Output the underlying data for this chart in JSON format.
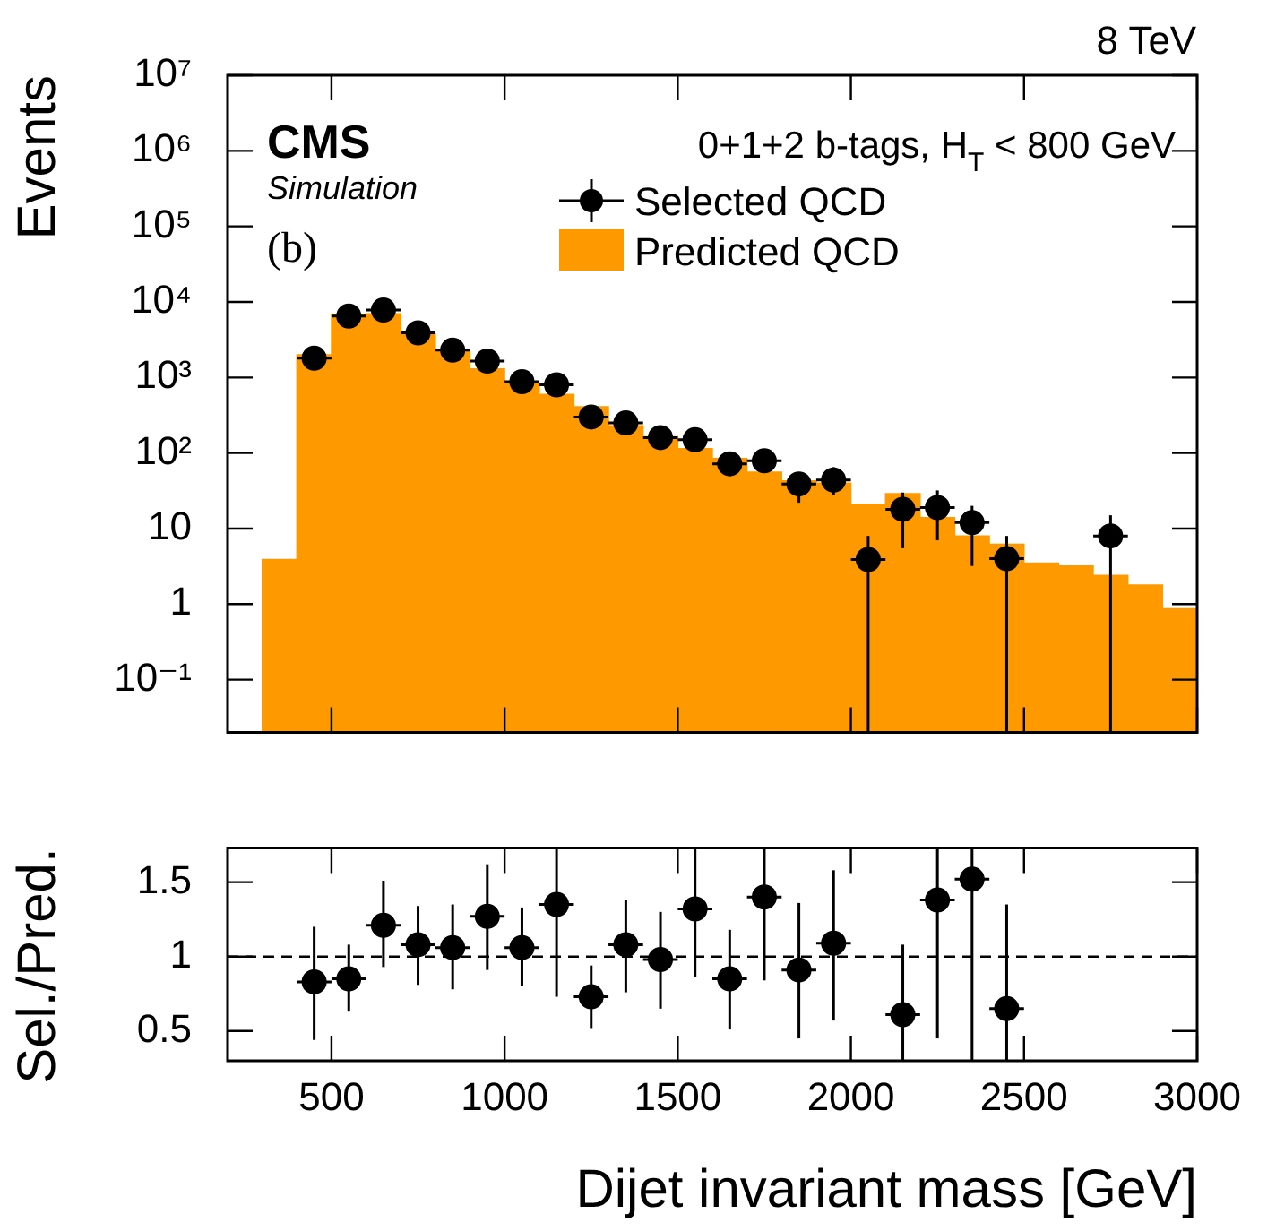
{
  "chart_data": [
    {
      "type": "histogram",
      "title": "8 TeV",
      "ylabel": "Events",
      "log": "y",
      "legend": "top right",
      "tick_labels": "y",
      "marker": "circle",
      "annotations": [
        "CMS",
        "Simulation",
        "(b)",
        "0+1+2 b-tags, H$_{T}$ < 800 GeV"
      ],
      "xlim": [
        200,
        3000
      ],
      "xticks": [
        {
          "value": 500,
          "label": null
        },
        {
          "value": 1000,
          "label": null
        },
        {
          "value": 1500,
          "label": null
        },
        {
          "value": 2000,
          "label": null
        },
        {
          "value": 2500,
          "label": null
        },
        {
          "value": 3000,
          "label": null
        }
      ],
      "ylim": [
        0.02,
        10000000
      ],
      "yticks": [
        {
          "value": 0.1,
          "label": "10⁻¹"
        },
        1,
        10,
        {
          "value": 100,
          "label": "10²"
        },
        {
          "value": 1000,
          "label": "10³"
        },
        {
          "value": 10000,
          "label": "10⁴"
        },
        {
          "value": 100000,
          "label": "10⁵"
        },
        {
          "value": 1000000,
          "label": "10⁶"
        },
        {
          "value": 10000000,
          "label": "10⁷"
        }
      ],
      "series": [
        {
          "name": "Predicted QCD",
          "color": "#ff9900",
          "bins": [
            300,
            400,
            500,
            600,
            700,
            800,
            900,
            1000,
            1100,
            1200,
            1300,
            1400,
            1500,
            1600,
            1700,
            1800,
            1900,
            2000,
            2100,
            2200,
            2300,
            2400,
            2500,
            2600,
            2700,
            2800,
            2900,
            3000
          ],
          "values": [
            3.9,
            2000,
            6800,
            7000,
            3800,
            2200,
            1300,
            830,
            600,
            410,
            230,
            165,
            115,
            85,
            56,
            43,
            40,
            21,
            29,
            14,
            8,
            6.2,
            3.5,
            3.2,
            2.4,
            1.8,
            0.87
          ]
        },
        {
          "type": "scatter",
          "name": "Selected QCD",
          "color": "#000000",
          "x": [
            450,
            550,
            650,
            750,
            850,
            950,
            1050,
            1150,
            1250,
            1350,
            1450,
            1550,
            1650,
            1750,
            1850,
            1950,
            2050,
            2150,
            2250,
            2350,
            2450,
            2750
          ],
          "values": [
            1800,
            6500,
            7800,
            3900,
            2300,
            1650,
            880,
            800,
            300,
            250,
            160,
            150,
            72,
            79,
            39,
            44,
            3.9,
            18,
            19,
            12,
            4,
            8
          ],
          "xerrors": [
            50,
            50,
            50,
            50,
            50,
            50,
            50,
            50,
            50,
            50,
            50,
            50,
            50,
            50,
            50,
            50,
            50,
            50,
            50,
            50,
            50,
            50
          ],
          "errors": [
            null,
            null,
            null,
            null,
            null,
            null,
            null,
            null,
            null,
            null,
            null,
            null,
            null,
            null,
            [
              22,
              55
            ],
            [
              28,
              65
            ],
            [
              0.02,
              8
            ],
            [
              5.5,
              30
            ],
            [
              7,
              32
            ],
            [
              3.2,
              20
            ],
            [
              0.02,
              8
            ],
            [
              0.02,
              15
            ]
          ]
        }
      ]
    },
    {
      "type": "scatter",
      "xlabel": "Dijet invariant mass [GeV]",
      "ylabel": "Sel./Pred.",
      "marker": "circle",
      "xlim": [
        200,
        3000
      ],
      "xticks": [
        500,
        1000,
        1500,
        2000,
        2500,
        3000
      ],
      "ylim": [
        0.3,
        1.73
      ],
      "yticks": [
        0.5,
        1,
        1.5
      ],
      "ref_lines": [
        {
          "axis": "y",
          "value": 1,
          "line_style": "dashed",
          "color": "#000000"
        }
      ],
      "series": [
        {
          "color": "#000000",
          "x": [
            450,
            550,
            650,
            750,
            850,
            950,
            1050,
            1150,
            1250,
            1350,
            1450,
            1550,
            1650,
            1750,
            1850,
            1950,
            2050,
            2150,
            2250,
            2350,
            2450
          ],
          "values": [
            0.83,
            0.85,
            1.21,
            1.08,
            1.06,
            1.27,
            1.06,
            1.35,
            0.73,
            1.08,
            0.98,
            1.32,
            0.85,
            1.4,
            0.91,
            1.09,
            null,
            0.61,
            1.38,
            1.52,
            0.65
          ],
          "xerrors": [
            50,
            50,
            50,
            50,
            50,
            50,
            50,
            50,
            50,
            50,
            50,
            50,
            50,
            50,
            50,
            50,
            null,
            50,
            50,
            50,
            50
          ],
          "errors": [
            [
              0.44,
              1.2
            ],
            [
              0.63,
              1.08
            ],
            [
              0.93,
              1.51
            ],
            [
              0.81,
              1.34
            ],
            [
              0.78,
              1.35
            ],
            [
              0.91,
              1.62
            ],
            [
              0.8,
              1.33
            ],
            [
              0.73,
              1.73
            ],
            [
              0.52,
              0.94
            ],
            [
              0.76,
              1.38
            ],
            [
              0.65,
              1.3
            ],
            [
              0.86,
              1.73
            ],
            [
              0.51,
              1.18
            ],
            [
              0.84,
              1.73
            ],
            [
              0.45,
              1.36
            ],
            [
              0.57,
              1.58
            ],
            null,
            [
              0.3,
              1.08
            ],
            [
              0.45,
              1.73
            ],
            [
              0.3,
              1.73
            ],
            [
              0.3,
              1.35
            ]
          ]
        }
      ]
    }
  ]
}
